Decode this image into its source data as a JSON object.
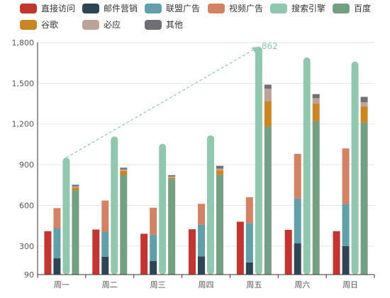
{
  "chart_data": {
    "type": "bar",
    "categories": [
      "周一",
      "周二",
      "周三",
      "周四",
      "周五",
      "周六",
      "周日"
    ],
    "y_ticks": [
      "90",
      "300",
      "600",
      "900",
      "1,200",
      "1,500",
      "1,800"
    ],
    "ylim": [
      90,
      1800
    ],
    "grid": true,
    "legend_position": "top-left",
    "legend": [
      {
        "name": "直接访问",
        "color": "#c23531"
      },
      {
        "name": "邮件营销",
        "color": "#2f4554"
      },
      {
        "name": "联盟广告",
        "color": "#61a0a8"
      },
      {
        "name": "视频广告",
        "color": "#d48265"
      },
      {
        "name": "搜索引擎",
        "color": "#91c7ae"
      },
      {
        "name": "百度",
        "color": "#749f83"
      },
      {
        "name": "谷歌",
        "color": "#ca8622"
      },
      {
        "name": "必应",
        "color": "#bda29a"
      },
      {
        "name": "其他",
        "color": "#6e7074"
      }
    ],
    "series": [
      {
        "name": "直接访问",
        "color": "#c23531",
        "stack": null,
        "values": [
          320,
          332,
          301,
          334,
          390,
          330,
          320
        ]
      },
      {
        "name": "邮件营销",
        "color": "#2f4554",
        "stack": "广告",
        "values": [
          120,
          132,
          101,
          134,
          90,
          230,
          210
        ]
      },
      {
        "name": "联盟广告",
        "color": "#61a0a8",
        "stack": "广告",
        "values": [
          220,
          182,
          191,
          234,
          290,
          330,
          310
        ]
      },
      {
        "name": "视频广告",
        "color": "#d48265",
        "stack": "广告",
        "values": [
          150,
          232,
          201,
          154,
          190,
          330,
          410
        ]
      },
      {
        "name": "搜索引擎",
        "color": "#91c7ae",
        "stack": null,
        "rounded": true,
        "values": [
          862,
          1018,
          964,
          1026,
          1679,
          1600,
          1570
        ]
      },
      {
        "name": "百度",
        "color": "#749f83",
        "stack": "搜索引擎",
        "values": [
          620,
          732,
          701,
          734,
          1090,
          1130,
          1120
        ]
      },
      {
        "name": "谷歌",
        "color": "#ca8622",
        "stack": "搜索引擎",
        "values": [
          20,
          32,
          11,
          34,
          190,
          130,
          120
        ]
      },
      {
        "name": "必应",
        "color": "#bda29a",
        "stack": "搜索引擎",
        "values": [
          10,
          12,
          11,
          14,
          90,
          40,
          30
        ]
      },
      {
        "name": "其他",
        "color": "#6e7074",
        "stack": "搜索引擎",
        "values": [
          12,
          12,
          10,
          20,
          30,
          30,
          40
        ]
      }
    ],
    "annotations": [
      {
        "type": "arrow-line",
        "series": "搜索引擎",
        "from_category": "周一",
        "to_category": "周五",
        "label": "862"
      }
    ]
  }
}
